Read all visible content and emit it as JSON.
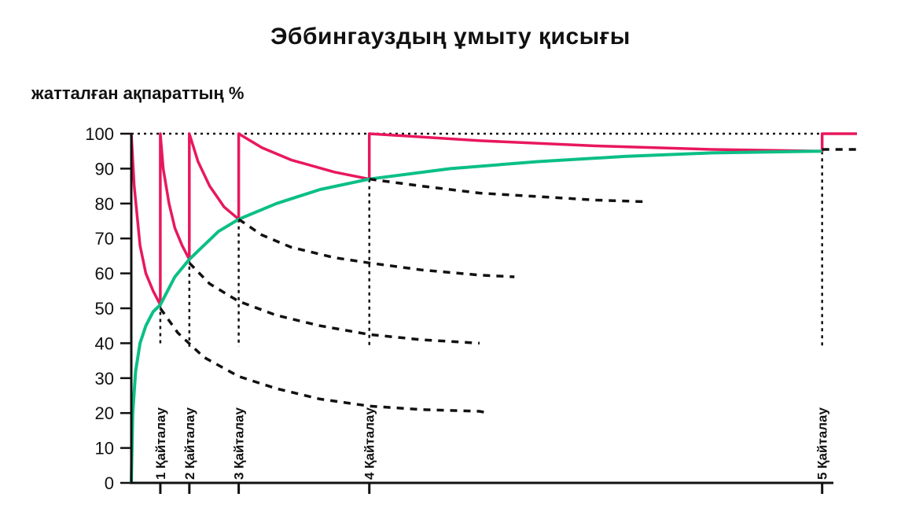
{
  "chart_data": {
    "type": "line",
    "title": "Эббингауздың ұмыту қисығы",
    "ylabel": "жатталған ақпараттың %",
    "xlabel": "",
    "ylim": [
      0,
      100
    ],
    "y_ticks": [
      "0",
      "10",
      "20",
      "30",
      "40",
      "50",
      "60",
      "70",
      "80",
      "90",
      "100"
    ],
    "grid": false,
    "colors": {
      "retention": "#e8185c",
      "long_term": "#0bbf86",
      "no_repeat": "#111111"
    },
    "repetitions": [
      {
        "label": "1 Қайталау",
        "x": 1.0,
        "y_before": 51,
        "y_after": 100
      },
      {
        "label": "2 Қайталау",
        "x": 2.0,
        "y_before": 64,
        "y_after": 100
      },
      {
        "label": "3 Қайталау",
        "x": 3.7,
        "y_before": 75.5,
        "y_after": 100
      },
      {
        "label": "4 Қайталау",
        "x": 8.2,
        "y_before": 87,
        "y_after": 100
      },
      {
        "label": "5 Қайталау",
        "x": 23.8,
        "y_before": 95,
        "y_after": 100
      }
    ],
    "series": [
      {
        "style": "solid",
        "points": [
          [
            0,
            100
          ],
          [
            0,
            100
          ],
          [
            0.1,
            85
          ],
          [
            0.3,
            68
          ],
          [
            0.5,
            60
          ],
          [
            0.75,
            55
          ],
          [
            1.0,
            51
          ],
          [
            1.0,
            100
          ],
          [
            1.1,
            90
          ],
          [
            1.3,
            80
          ],
          [
            1.5,
            73
          ],
          [
            1.75,
            68
          ],
          [
            2.0,
            64
          ],
          [
            2.0,
            100
          ],
          [
            2.3,
            92
          ],
          [
            2.7,
            85
          ],
          [
            3.2,
            79
          ],
          [
            3.7,
            75.5
          ],
          [
            3.7,
            100
          ],
          [
            4.5,
            96
          ],
          [
            5.5,
            92.5
          ],
          [
            7.0,
            89
          ],
          [
            8.2,
            87
          ],
          [
            8.2,
            100
          ],
          [
            12,
            98
          ],
          [
            16,
            96.5
          ],
          [
            20,
            95.5
          ],
          [
            23.8,
            95
          ],
          [
            23.8,
            100
          ],
          [
            25,
            100
          ]
        ]
      },
      {
        "style": "solid",
        "points": [
          [
            0,
            0
          ],
          [
            0.05,
            20
          ],
          [
            0.15,
            32
          ],
          [
            0.3,
            40
          ],
          [
            0.5,
            45
          ],
          [
            0.75,
            49
          ],
          [
            1.0,
            51
          ],
          [
            1.5,
            59
          ],
          [
            2.0,
            64
          ],
          [
            3.0,
            72
          ],
          [
            3.7,
            75.5
          ],
          [
            5,
            80
          ],
          [
            6.5,
            84
          ],
          [
            8.2,
            87
          ],
          [
            11,
            90
          ],
          [
            14,
            92
          ],
          [
            17,
            93.5
          ],
          [
            20,
            94.5
          ],
          [
            23.8,
            95
          ]
        ]
      },
      {
        "style": "dashed",
        "points": [
          [
            1.0,
            50
          ],
          [
            1.6,
            43
          ],
          [
            2.5,
            36
          ],
          [
            3.7,
            30.5
          ],
          [
            5,
            27
          ],
          [
            6.5,
            24
          ],
          [
            8.2,
            22
          ],
          [
            10,
            21
          ],
          [
            12,
            20.5
          ],
          [
            12.3,
            20
          ]
        ]
      },
      {
        "style": "dashed",
        "points": [
          [
            2.0,
            63
          ],
          [
            2.7,
            57
          ],
          [
            3.7,
            52
          ],
          [
            5,
            48
          ],
          [
            6.5,
            45
          ],
          [
            8.2,
            42.5
          ],
          [
            10,
            41
          ],
          [
            12,
            40
          ]
        ]
      },
      {
        "style": "dashed",
        "points": [
          [
            3.7,
            75.5
          ],
          [
            4.5,
            71
          ],
          [
            5.5,
            67.5
          ],
          [
            7,
            64.5
          ],
          [
            8.2,
            63
          ],
          [
            10,
            61
          ],
          [
            12,
            59.5
          ],
          [
            13.2,
            59
          ]
        ]
      },
      {
        "style": "dashed",
        "points": [
          [
            8.2,
            87
          ],
          [
            10,
            85
          ],
          [
            12,
            83
          ],
          [
            14,
            82
          ],
          [
            16,
            81
          ],
          [
            17.8,
            80.5
          ]
        ]
      },
      {
        "style": "dashed",
        "points": [
          [
            23.8,
            95.5
          ],
          [
            25,
            95.5
          ]
        ]
      }
    ]
  }
}
